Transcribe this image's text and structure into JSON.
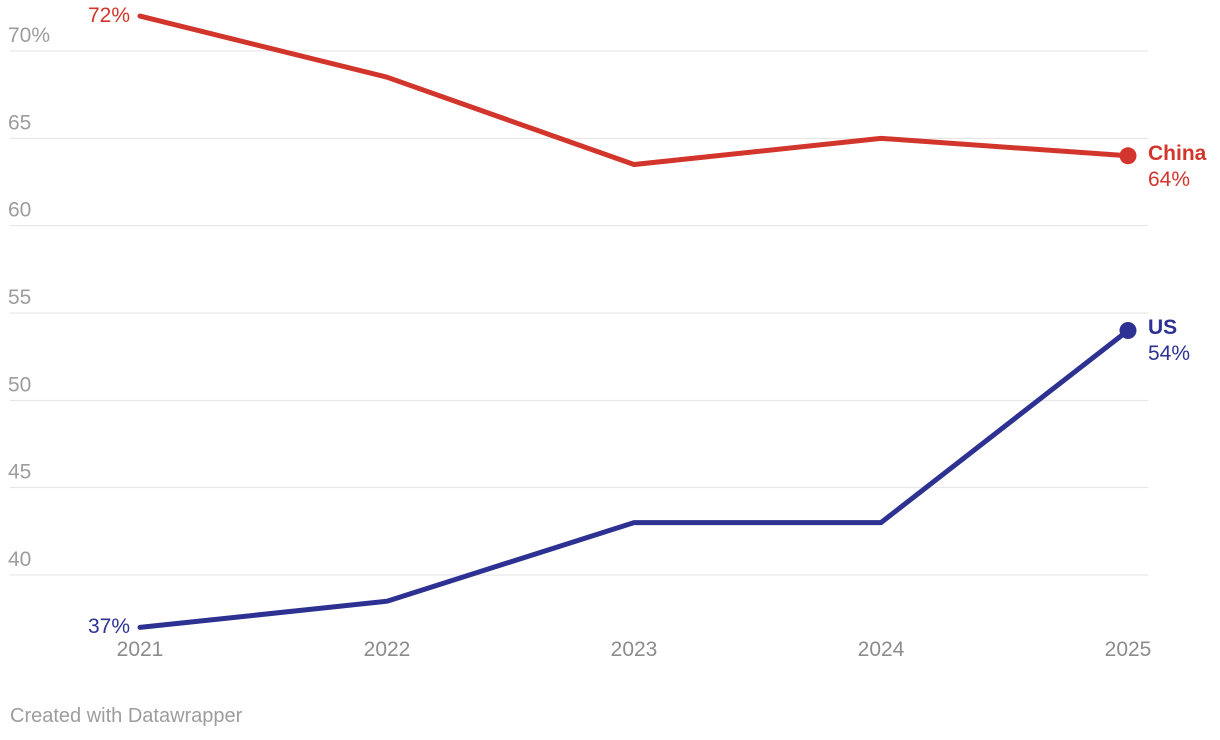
{
  "chart_data": {
    "type": "line",
    "title": "",
    "x": [
      "2021",
      "2022",
      "2023",
      "2024",
      "2025"
    ],
    "series": [
      {
        "name": "China",
        "color": "#d2352b",
        "values": [
          72,
          68.5,
          63.5,
          65,
          64
        ],
        "first_label": "72%",
        "last_label": "64%"
      },
      {
        "name": "US",
        "color": "#2d3192",
        "values": [
          37,
          38.5,
          43,
          43,
          54
        ],
        "first_label": "37%",
        "last_label": "54%"
      }
    ],
    "y_axis": {
      "ticks": [
        {
          "value": 70,
          "label": "70%"
        },
        {
          "value": 65,
          "label": "65"
        },
        {
          "value": 60,
          "label": "60"
        },
        {
          "value": 55,
          "label": "55"
        },
        {
          "value": 50,
          "label": "50"
        },
        {
          "value": 45,
          "label": "45"
        },
        {
          "value": 40,
          "label": "40"
        }
      ],
      "range": [
        36,
        72
      ]
    },
    "grid": true,
    "legend_position": "line-end-labels",
    "styles": {
      "gridline_color": "#e3e3e3",
      "y_tick_color": "#9d9d9d",
      "x_tick_color": "#8c8c8c",
      "line_width": 5,
      "end_dot_radius": 8.5
    }
  },
  "footer": {
    "credit": "Created with Datawrapper"
  }
}
